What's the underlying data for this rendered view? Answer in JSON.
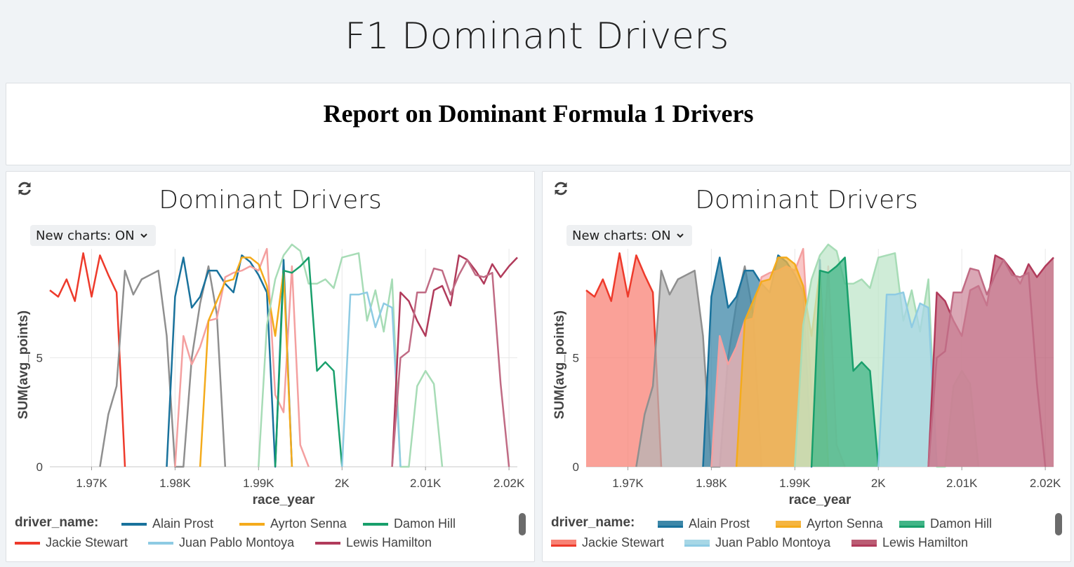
{
  "page": {
    "title": "F1 Dominant Drivers"
  },
  "report": {
    "title": "Report on Dominant Formula 1 Drivers"
  },
  "charts": [
    {
      "title": "Dominant Drivers",
      "toggle_label": "New charts: ON",
      "style": "line"
    },
    {
      "title": "Dominant Drivers",
      "toggle_label": "New charts: ON",
      "style": "area"
    }
  ],
  "icons": {
    "refresh": "refresh-icon",
    "toggle_arrow": "chevron-down-icon"
  },
  "legend": {
    "title": "driver_name:",
    "items": [
      "Alain Prost",
      "Ayrton Senna",
      "Damon Hill",
      "Jackie Stewart",
      "Juan Pablo Montoya",
      "Lewis Hamilton"
    ]
  },
  "chart_data": {
    "type": "line",
    "xlabel": "race_year",
    "ylabel": "SUM(avg_points)",
    "xlim": [
      1965,
      2021
    ],
    "ylim": [
      0,
      10
    ],
    "x_ticks": [
      1970,
      1980,
      1990,
      2000,
      2010,
      2020
    ],
    "x_tick_labels": [
      "1.97K",
      "1.98K",
      "1.99K",
      "2K",
      "2.01K",
      "2.02K"
    ],
    "y_ticks": [
      0,
      5
    ],
    "y_tick_labels": [
      "0",
      "5"
    ],
    "grid": true,
    "legend_position": "bottom",
    "series": [
      {
        "name": "Jackie Stewart",
        "color": "#ee3a2b",
        "fill": "#f88275",
        "points": [
          [
            1965,
            8.1
          ],
          [
            1966,
            7.8
          ],
          [
            1967,
            8.6
          ],
          [
            1968,
            7.6
          ],
          [
            1969,
            9.8
          ],
          [
            1970,
            7.8
          ],
          [
            1971,
            9.7
          ],
          [
            1972,
            8.8
          ],
          [
            1973,
            8.0
          ],
          [
            1974,
            0
          ]
        ]
      },
      {
        "name": "",
        "color": "#8f8f8f",
        "fill": "#b5b5b5",
        "points": [
          [
            1971,
            0
          ],
          [
            1972,
            2.4
          ],
          [
            1973,
            3.7
          ],
          [
            1974,
            9.0
          ],
          [
            1975,
            7.9
          ],
          [
            1976,
            8.6
          ],
          [
            1977,
            8.8
          ],
          [
            1978,
            9.0
          ],
          [
            1979,
            6.0
          ],
          [
            1980,
            0
          ],
          [
            1981,
            0
          ],
          [
            1982,
            5.0
          ],
          [
            1983,
            7.5
          ],
          [
            1984,
            9.2
          ],
          [
            1985,
            7.0
          ],
          [
            1986,
            0
          ]
        ]
      },
      {
        "name": "Alain Prost",
        "color": "#19729c",
        "fill": "#3d87a8",
        "points": [
          [
            1979,
            0
          ],
          [
            1980,
            7.8
          ],
          [
            1981,
            9.6
          ],
          [
            1982,
            7.3
          ],
          [
            1983,
            7.8
          ],
          [
            1984,
            9.0
          ],
          [
            1985,
            9.0
          ],
          [
            1986,
            8.4
          ],
          [
            1987,
            8.0
          ],
          [
            1988,
            9.7
          ],
          [
            1989,
            9.4
          ],
          [
            1990,
            8.8
          ],
          [
            1991,
            8.0
          ],
          [
            1992,
            0
          ],
          [
            1993,
            9.5
          ],
          [
            1994,
            0
          ]
        ]
      },
      {
        "name": "",
        "color": "#f4a0a0",
        "fill": "#f7b4b4",
        "points": [
          [
            1980,
            0
          ],
          [
            1981,
            6.0
          ],
          [
            1982,
            4.7
          ],
          [
            1983,
            5.5
          ],
          [
            1984,
            6.7
          ],
          [
            1985,
            6.8
          ],
          [
            1986,
            8.7
          ],
          [
            1987,
            8.9
          ],
          [
            1988,
            9.0
          ],
          [
            1989,
            9.2
          ],
          [
            1990,
            9.0
          ],
          [
            1991,
            10.0
          ],
          [
            1992,
            3.3
          ],
          [
            1993,
            2.5
          ],
          [
            1994,
            9.2
          ],
          [
            1995,
            1.0
          ],
          [
            1996,
            0
          ]
        ]
      },
      {
        "name": "Ayrton Senna",
        "color": "#f4ab1c",
        "fill": "#f5b540",
        "points": [
          [
            1983,
            0
          ],
          [
            1984,
            6.7
          ],
          [
            1985,
            7.6
          ],
          [
            1986,
            8.5
          ],
          [
            1987,
            8.6
          ],
          [
            1988,
            9.6
          ],
          [
            1989,
            9.6
          ],
          [
            1990,
            9.3
          ],
          [
            1991,
            8.3
          ],
          [
            1992,
            6.0
          ],
          [
            1993,
            9.0
          ],
          [
            1994,
            0
          ]
        ]
      },
      {
        "name": "",
        "color": "#a7dcb6",
        "fill": "#bfe6c9",
        "points": [
          [
            1990,
            0
          ],
          [
            1991,
            6.5
          ],
          [
            1992,
            8.6
          ],
          [
            1993,
            9.7
          ],
          [
            1994,
            10.2
          ],
          [
            1995,
            9.9
          ],
          [
            1996,
            8.4
          ],
          [
            1997,
            8.4
          ],
          [
            1998,
            8.6
          ],
          [
            1999,
            8.2
          ],
          [
            2000,
            9.6
          ],
          [
            2001,
            9.7
          ],
          [
            2002,
            9.8
          ],
          [
            2003,
            6.7
          ],
          [
            2004,
            8.1
          ],
          [
            2005,
            6.2
          ],
          [
            2006,
            8.6
          ],
          [
            2007,
            0
          ],
          [
            2008,
            0
          ],
          [
            2009,
            3.7
          ],
          [
            2010,
            4.4
          ],
          [
            2011,
            3.8
          ],
          [
            2012,
            0
          ]
        ]
      },
      {
        "name": "Damon Hill",
        "color": "#189f6b",
        "fill": "#41b587",
        "points": [
          [
            1992,
            0
          ],
          [
            1993,
            9.0
          ],
          [
            1994,
            8.9
          ],
          [
            1995,
            9.2
          ],
          [
            1996,
            9.6
          ],
          [
            1997,
            4.4
          ],
          [
            1998,
            4.8
          ],
          [
            1999,
            4.4
          ],
          [
            2000,
            0
          ]
        ]
      },
      {
        "name": "Juan Pablo Montoya",
        "color": "#8ecbe3",
        "fill": "#a7d7e6",
        "points": [
          [
            2000,
            0
          ],
          [
            2001,
            7.9
          ],
          [
            2002,
            7.9
          ],
          [
            2003,
            8.0
          ],
          [
            2004,
            6.4
          ],
          [
            2005,
            7.5
          ],
          [
            2006,
            7.3
          ],
          [
            2007,
            0
          ]
        ]
      },
      {
        "name": "Lewis Hamilton",
        "color": "#b13b5b",
        "fill": "#bb5c74",
        "points": [
          [
            2006,
            0
          ],
          [
            2007,
            8.0
          ],
          [
            2008,
            7.6
          ],
          [
            2009,
            6.7
          ],
          [
            2010,
            6.0
          ],
          [
            2011,
            8.1
          ],
          [
            2012,
            8.3
          ],
          [
            2013,
            7.4
          ],
          [
            2014,
            9.7
          ],
          [
            2015,
            9.5
          ],
          [
            2016,
            9.0
          ],
          [
            2017,
            8.4
          ],
          [
            2018,
            9.3
          ],
          [
            2019,
            8.7
          ],
          [
            2020,
            9.2
          ],
          [
            2021,
            9.6
          ]
        ]
      },
      {
        "name": "",
        "color": "#c06b84",
        "fill": "#cd8a9c",
        "points": [
          [
            2006,
            0
          ],
          [
            2007,
            5.0
          ],
          [
            2008,
            5.3
          ],
          [
            2009,
            8.0
          ],
          [
            2010,
            8.0
          ],
          [
            2011,
            9.1
          ],
          [
            2012,
            9.0
          ],
          [
            2013,
            7.9
          ],
          [
            2014,
            8.8
          ],
          [
            2015,
            9.5
          ],
          [
            2016,
            8.8
          ],
          [
            2017,
            8.7
          ],
          [
            2018,
            8.9
          ],
          [
            2019,
            3.8
          ],
          [
            2020,
            0
          ]
        ]
      }
    ]
  }
}
